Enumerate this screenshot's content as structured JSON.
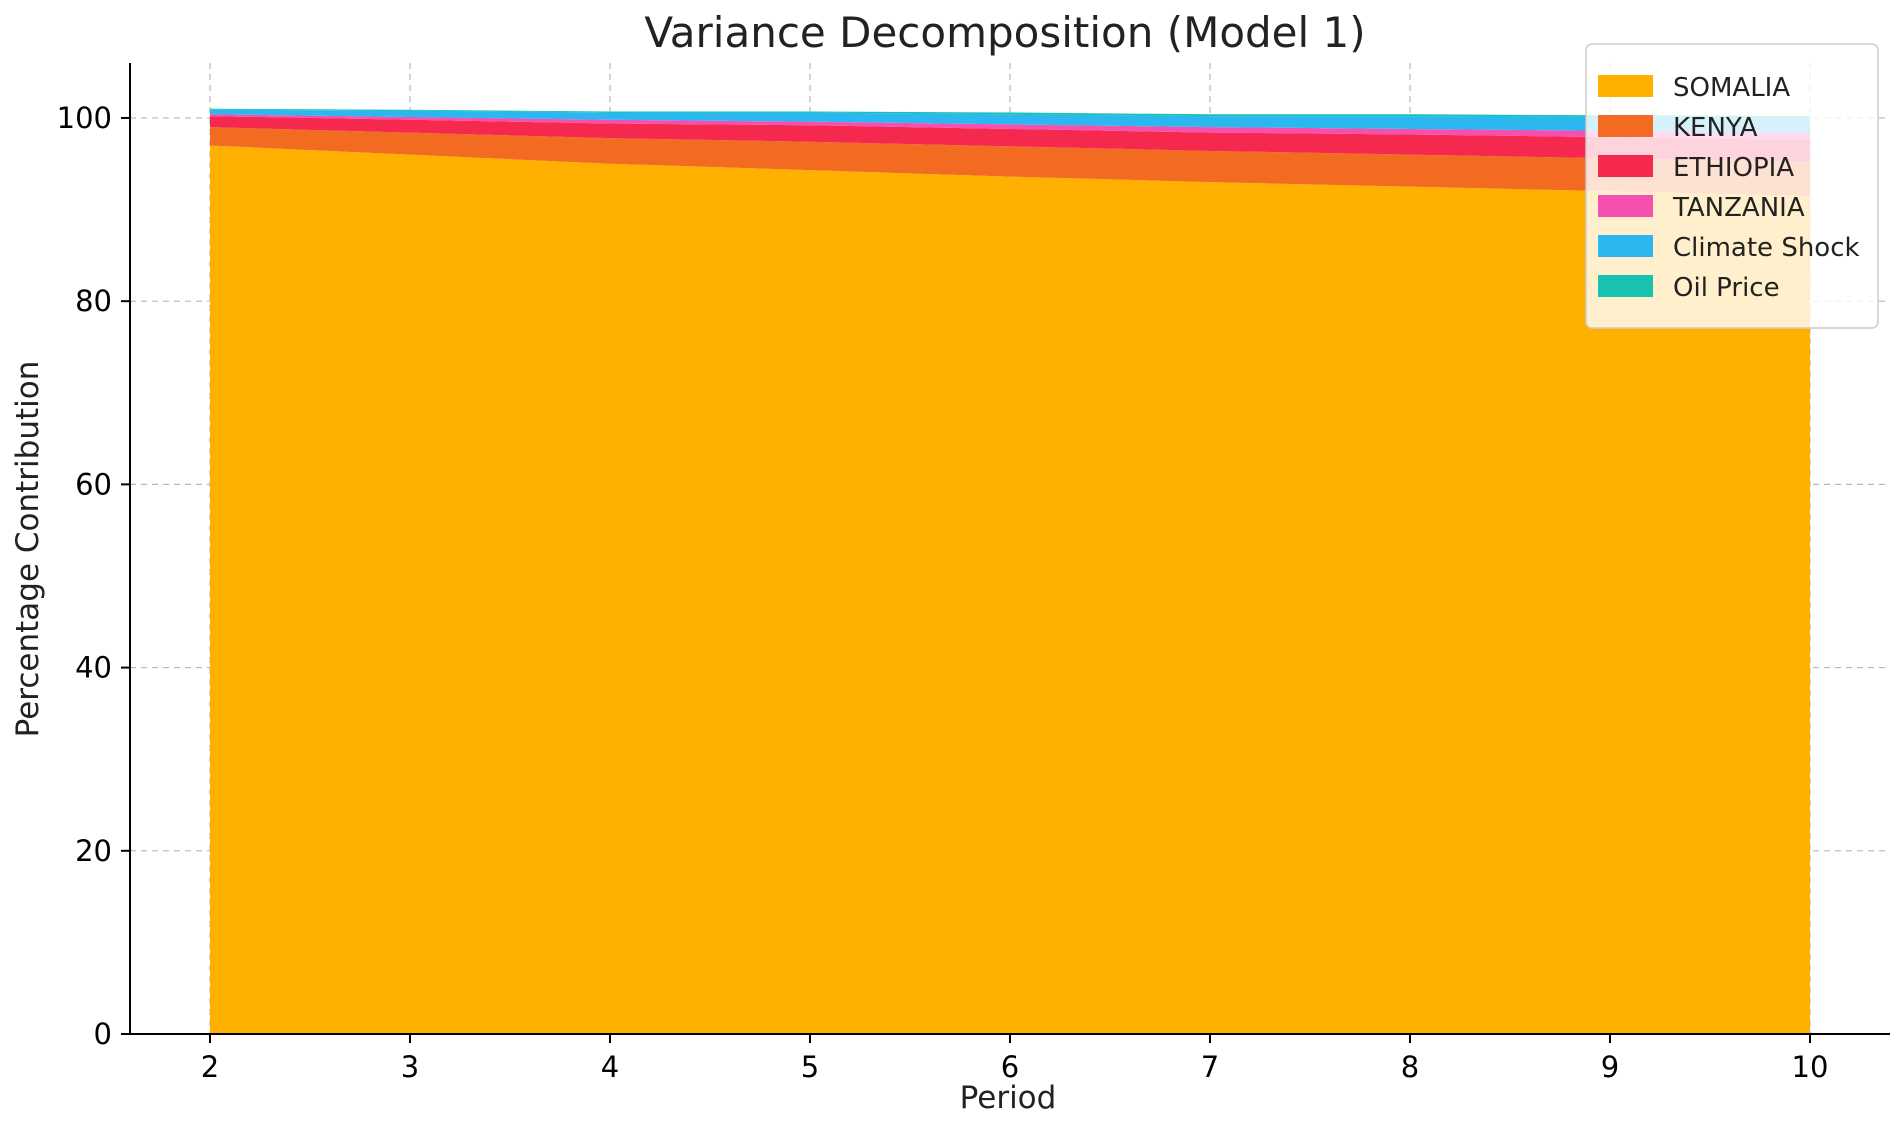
{
  "chart_data": {
    "type": "area",
    "stacked": true,
    "title": "Variance Decomposition (Model 1)",
    "xlabel": "Period",
    "ylabel": "Percentage Contribution",
    "x": [
      2,
      3,
      4,
      5,
      6,
      7,
      8,
      9,
      10
    ],
    "xlim": [
      1.6,
      10.4
    ],
    "ylim": [
      0,
      106
    ],
    "xticks": [
      "2",
      "3",
      "4",
      "5",
      "6",
      "7",
      "8",
      "9",
      "10"
    ],
    "yticks": [
      "0",
      "20",
      "40",
      "60",
      "80",
      "100"
    ],
    "grid": true,
    "legend_position": "top-right",
    "series": [
      {
        "name": "SOMALIA",
        "color": "#FFB000",
        "values": [
          97.0,
          96.0,
          95.0,
          94.3,
          93.6,
          93.0,
          92.5,
          92.0,
          91.5
        ]
      },
      {
        "name": "KENYA",
        "color": "#F26B21",
        "values": [
          2.0,
          2.4,
          2.8,
          3.1,
          3.3,
          3.4,
          3.5,
          3.6,
          3.7
        ]
      },
      {
        "name": "ETHIOPIA",
        "color": "#F5284E",
        "values": [
          1.2,
          1.4,
          1.6,
          1.8,
          1.9,
          2.0,
          2.2,
          2.3,
          2.4
        ]
      },
      {
        "name": "TANZANIA",
        "color": "#F54FB0",
        "values": [
          0.2,
          0.3,
          0.4,
          0.4,
          0.5,
          0.6,
          0.6,
          0.7,
          0.8
        ]
      },
      {
        "name": "Climate Shock",
        "color": "#2BB8F0",
        "values": [
          0.5,
          0.7,
          0.8,
          1.0,
          1.1,
          1.2,
          1.4,
          1.5,
          1.6
        ]
      },
      {
        "name": "Oil Price",
        "color": "#17C2B0",
        "values": [
          0.1,
          0.1,
          0.1,
          0.1,
          0.2,
          0.2,
          0.2,
          0.2,
          0.2
        ]
      }
    ]
  }
}
